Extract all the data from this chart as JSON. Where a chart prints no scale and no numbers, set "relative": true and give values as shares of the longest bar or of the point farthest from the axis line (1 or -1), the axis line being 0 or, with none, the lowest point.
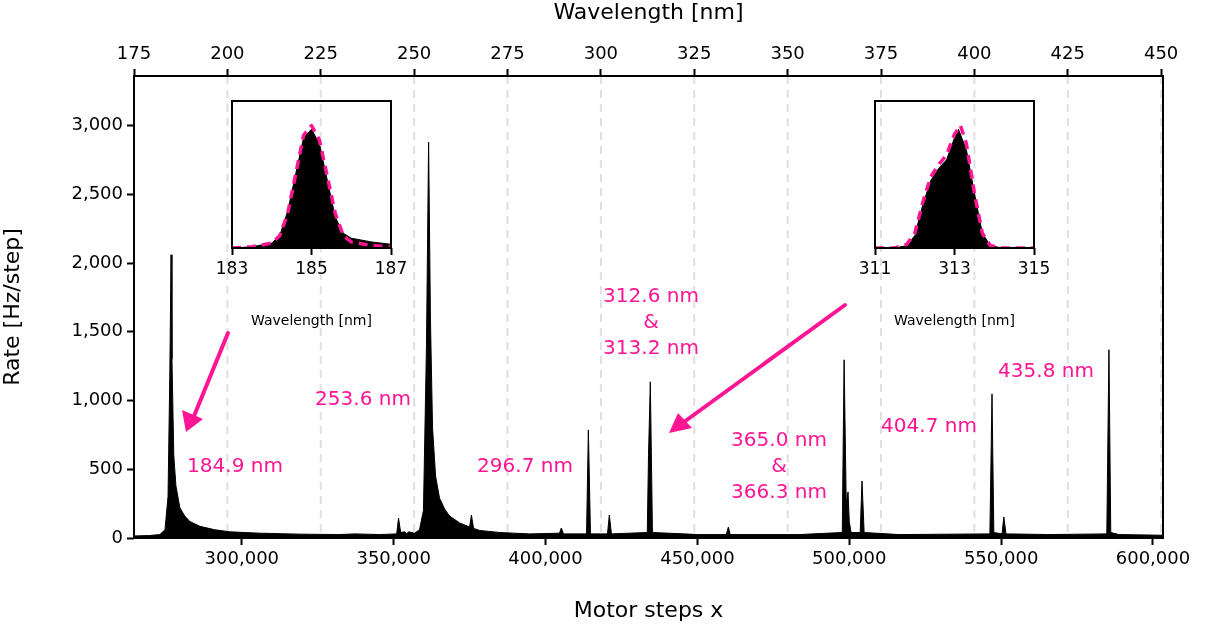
{
  "chart_data": [
    {
      "type": "area",
      "x2label": "Wavelength [nm]",
      "xlabel": "Motor steps x",
      "ylabel": "Rate [Hz/step]",
      "color": "#000000",
      "x": [
        264500,
        269700,
        273000,
        274700,
        275700,
        276300,
        276700,
        277000,
        277600,
        278300,
        279600,
        281200,
        282900,
        286200,
        291100,
        296000,
        305900,
        319100,
        332200,
        337200,
        345400,
        351000,
        351600,
        352300,
        353600,
        354300,
        354900,
        356900,
        358500,
        359800,
        360800,
        361500,
        362100,
        362800,
        363800,
        365100,
        366800,
        368400,
        371700,
        375000,
        375600,
        376300,
        378300,
        384900,
        394700,
        404600,
        405200,
        405900,
        413500,
        414100,
        414800,
        420400,
        421000,
        421700,
        433500,
        433900,
        434500,
        435200,
        450600,
        459500,
        460200,
        460800,
        483500,
        497700,
        498300,
        499000,
        499600,
        500000,
        500600,
        503600,
        504200,
        504900,
        516400,
        546300,
        547000,
        547600,
        550300,
        550900,
        551600,
        565700,
        584800,
        585500,
        586100,
        588800,
        603300
      ],
      "values": [
        15,
        18,
        25,
        60,
        300,
        1200,
        2060,
        1300,
        600,
        380,
        220,
        160,
        120,
        85,
        60,
        45,
        35,
        28,
        25,
        30,
        25,
        30,
        145,
        40,
        45,
        30,
        45,
        35,
        60,
        200,
        1400,
        2880,
        1600,
        800,
        450,
        290,
        210,
        160,
        110,
        80,
        167,
        70,
        55,
        40,
        30,
        35,
        73,
        30,
        30,
        786,
        30,
        30,
        167,
        30,
        40,
        600,
        1136,
        40,
        25,
        25,
        80,
        25,
        25,
        40,
        1296,
        250,
        335,
        120,
        40,
        40,
        415,
        40,
        25,
        30,
        1048,
        40,
        30,
        153,
        30,
        25,
        30,
        1369,
        40,
        25,
        20
      ],
      "xlim": [
        264500,
        603300
      ],
      "xticks": [
        {
          "value": 300000,
          "label": "300,000"
        },
        {
          "value": 350000,
          "label": "350,000"
        },
        {
          "value": 400000,
          "label": "400,000"
        },
        {
          "value": 450000,
          "label": "450,000"
        },
        {
          "value": 500000,
          "label": "500,000"
        },
        {
          "value": 550000,
          "label": "550,000"
        },
        {
          "value": 600000,
          "label": "600,000"
        }
      ],
      "x2lim": [
        175,
        450.5
      ],
      "x2ticks": [
        175,
        200,
        225,
        250,
        275,
        300,
        325,
        350,
        375,
        400,
        425,
        450
      ],
      "ylim": [
        0,
        3360
      ],
      "yticks": [
        0,
        500,
        {
          "value": 1000,
          "label": "1,000"
        },
        {
          "value": 1500,
          "label": "1,500"
        },
        {
          "value": 2000,
          "label": "2,000"
        },
        {
          "value": 2500,
          "label": "2,500"
        },
        {
          "value": 3000,
          "label": "3,000"
        }
      ],
      "grid": "x",
      "annotations": [
        "184.9 nm",
        "253.6 nm",
        "296.7 nm",
        "312.6 nm\n&\n313.2 nm",
        "365.0 nm\n&\n366.3 nm",
        "404.7 nm",
        "435.8 nm"
      ]
    },
    {
      "type": "area",
      "xlabel": "Wavelength [nm]",
      "xlim": [
        183,
        187
      ],
      "xticks": [
        183,
        185,
        187
      ],
      "tick_labels": "x",
      "relative": true,
      "series": [
        {
          "type": "area",
          "color": "#000000",
          "x": [
            183,
            183.5,
            184,
            184.2,
            184.4,
            184.6,
            184.8,
            185,
            185.2,
            185.4,
            185.6,
            185.8,
            186,
            186.5,
            187
          ],
          "values": [
            0,
            0.01,
            0.04,
            0.1,
            0.3,
            0.6,
            0.9,
            0.97,
            0.85,
            0.55,
            0.25,
            0.12,
            0.08,
            0.05,
            0.03
          ]
        },
        {
          "type": "line",
          "color": "#ff1493",
          "line_style": "dashed",
          "x": [
            183,
            183.5,
            184,
            184.2,
            184.4,
            184.6,
            184.8,
            185,
            185.2,
            185.4,
            185.6,
            185.8,
            186,
            186.5,
            187
          ],
          "values": [
            0,
            0.01,
            0.04,
            0.1,
            0.28,
            0.6,
            0.92,
            1,
            0.88,
            0.58,
            0.28,
            0.1,
            0.05,
            0.02,
            0.01
          ]
        }
      ]
    },
    {
      "type": "area",
      "xlabel": "Wavelength [nm]",
      "xlim": [
        311,
        315
      ],
      "xticks": [
        311,
        313,
        315
      ],
      "tick_labels": "x",
      "relative": true,
      "series": [
        {
          "type": "area",
          "color": "#000000",
          "x": [
            311,
            311.5,
            311.8,
            312,
            312.2,
            312.4,
            312.6,
            312.8,
            313,
            313.1,
            313.3,
            313.5,
            313.7,
            313.9,
            314.2,
            315
          ],
          "values": [
            0,
            0,
            0.02,
            0.1,
            0.35,
            0.55,
            0.65,
            0.72,
            0.9,
            0.97,
            0.8,
            0.45,
            0.12,
            0.02,
            0,
            0
          ]
        },
        {
          "type": "line",
          "color": "#ff1493",
          "line_style": "dashed",
          "x": [
            311,
            311.5,
            311.8,
            312,
            312.2,
            312.4,
            312.6,
            312.8,
            313,
            313.15,
            313.3,
            313.5,
            313.7,
            313.9,
            314.2,
            315
          ],
          "values": [
            0,
            0,
            0.03,
            0.12,
            0.37,
            0.58,
            0.68,
            0.76,
            0.93,
            1,
            0.85,
            0.45,
            0.12,
            0.02,
            0,
            0
          ]
        }
      ]
    }
  ]
}
